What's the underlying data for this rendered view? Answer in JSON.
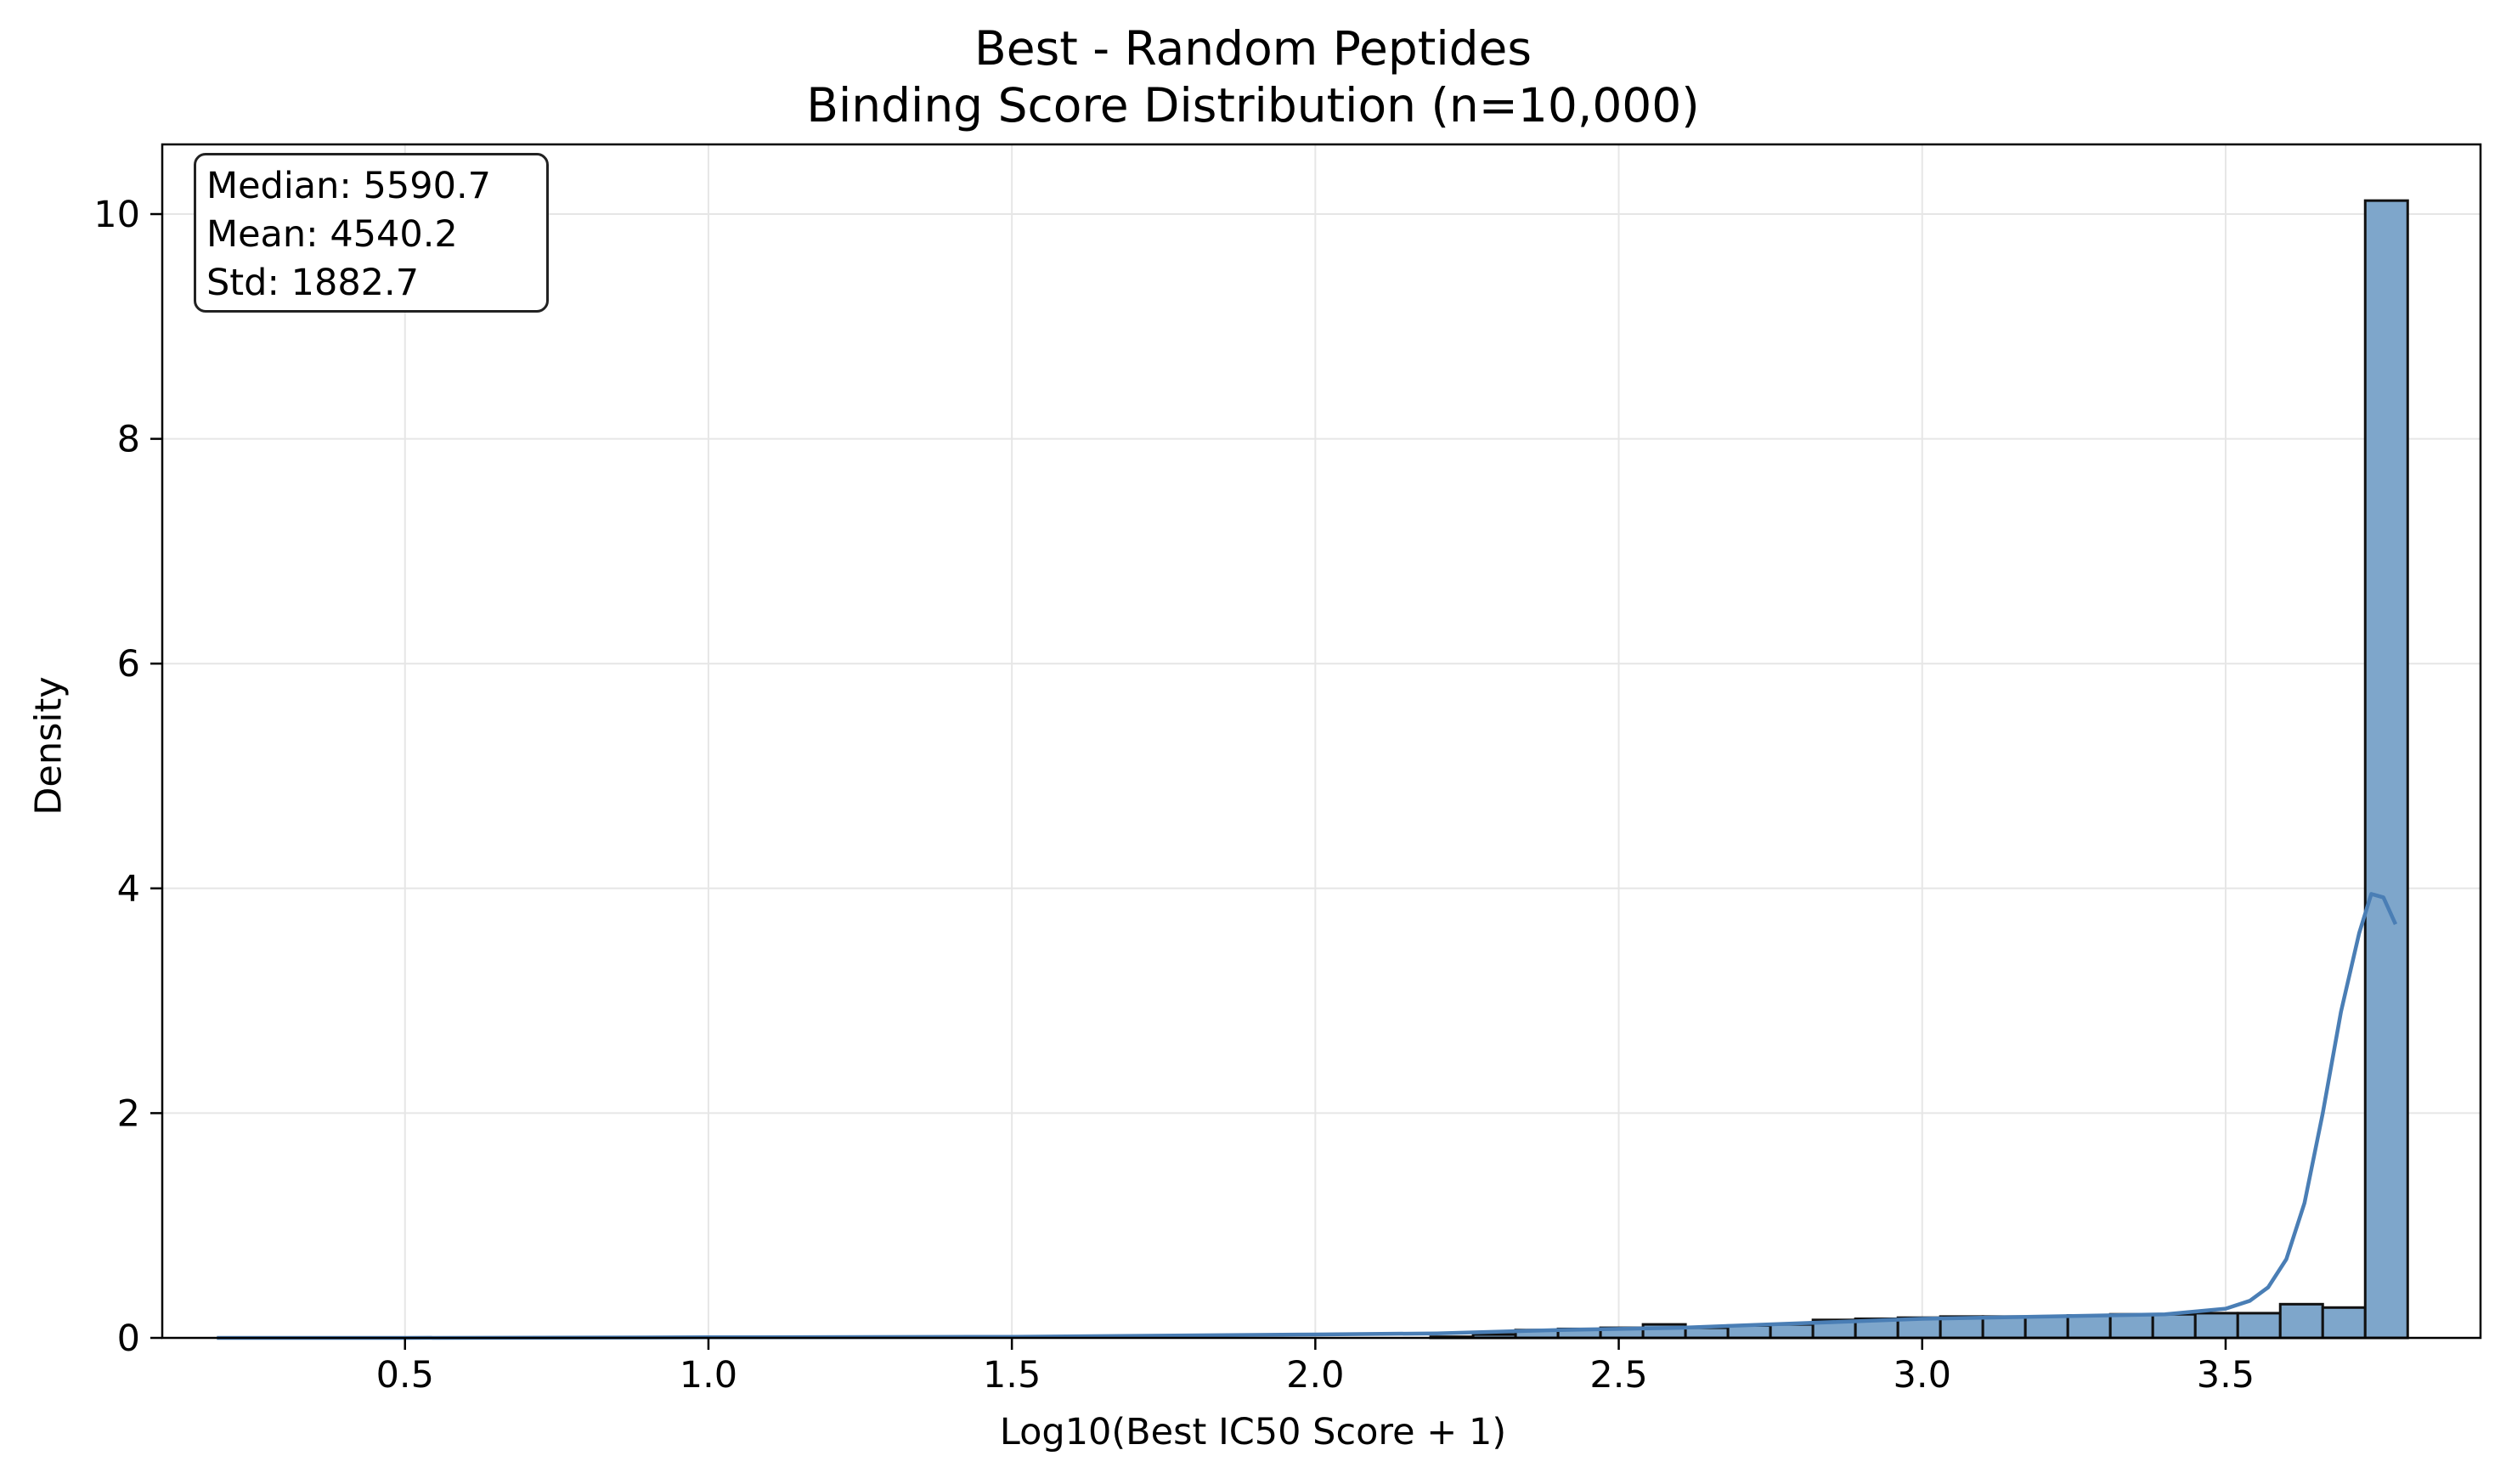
{
  "chart_data": {
    "type": "bar",
    "title_lines": [
      "Best - Random Peptides",
      "Binding Score Distribution (n=10,000)"
    ],
    "xlabel": "Log10(Best IC50 Score + 1)",
    "ylabel": "Density",
    "xlim": [
      0.1,
      3.92
    ],
    "ylim": [
      0,
      10.62
    ],
    "x_ticks": [
      0.5,
      1.0,
      1.5,
      2.0,
      2.5,
      3.0,
      3.5
    ],
    "x_tick_labels": [
      "0.5",
      "1.0",
      "1.5",
      "2.0",
      "2.5",
      "3.0",
      "3.5"
    ],
    "y_ticks": [
      0,
      2,
      4,
      6,
      8,
      10
    ],
    "y_tick_labels": [
      "0",
      "2",
      "4",
      "6",
      "8",
      "10"
    ],
    "grid": true,
    "stats": [
      "Median: 5590.7",
      "Mean: 4540.2",
      "Std: 1882.7"
    ],
    "histogram": {
      "bin_edges": [
        2.19,
        2.26,
        2.33,
        2.4,
        2.47,
        2.54,
        2.61,
        2.68,
        2.75,
        2.82,
        2.89,
        2.96,
        3.03,
        3.1,
        3.17,
        3.24,
        3.31,
        3.38,
        3.45,
        3.52,
        3.59,
        3.66,
        3.73,
        3.8
      ],
      "densities": [
        0.01,
        0.03,
        0.07,
        0.08,
        0.09,
        0.12,
        0.09,
        0.11,
        0.12,
        0.16,
        0.17,
        0.18,
        0.19,
        0.19,
        0.19,
        0.2,
        0.21,
        0.21,
        0.22,
        0.22,
        0.3,
        0.27,
        10.12
      ],
      "fill_color": "#7ea6cb",
      "edge_color": "#111111"
    },
    "kde": {
      "color": "#4a7eb5",
      "x": [
        0.19,
        0.5,
        1.0,
        1.5,
        2.0,
        2.2,
        2.4,
        2.6,
        2.8,
        3.0,
        3.2,
        3.4,
        3.5,
        3.54,
        3.57,
        3.6,
        3.63,
        3.66,
        3.69,
        3.72,
        3.74,
        3.76,
        3.78
      ],
      "y": [
        0.0,
        0.0,
        0.005,
        0.01,
        0.03,
        0.04,
        0.07,
        0.09,
        0.13,
        0.17,
        0.19,
        0.21,
        0.26,
        0.33,
        0.45,
        0.7,
        1.2,
        2.0,
        2.9,
        3.6,
        3.95,
        3.92,
        3.68
      ]
    },
    "colors": {
      "grid": "#e6e6e6",
      "axis": "#000000"
    }
  }
}
